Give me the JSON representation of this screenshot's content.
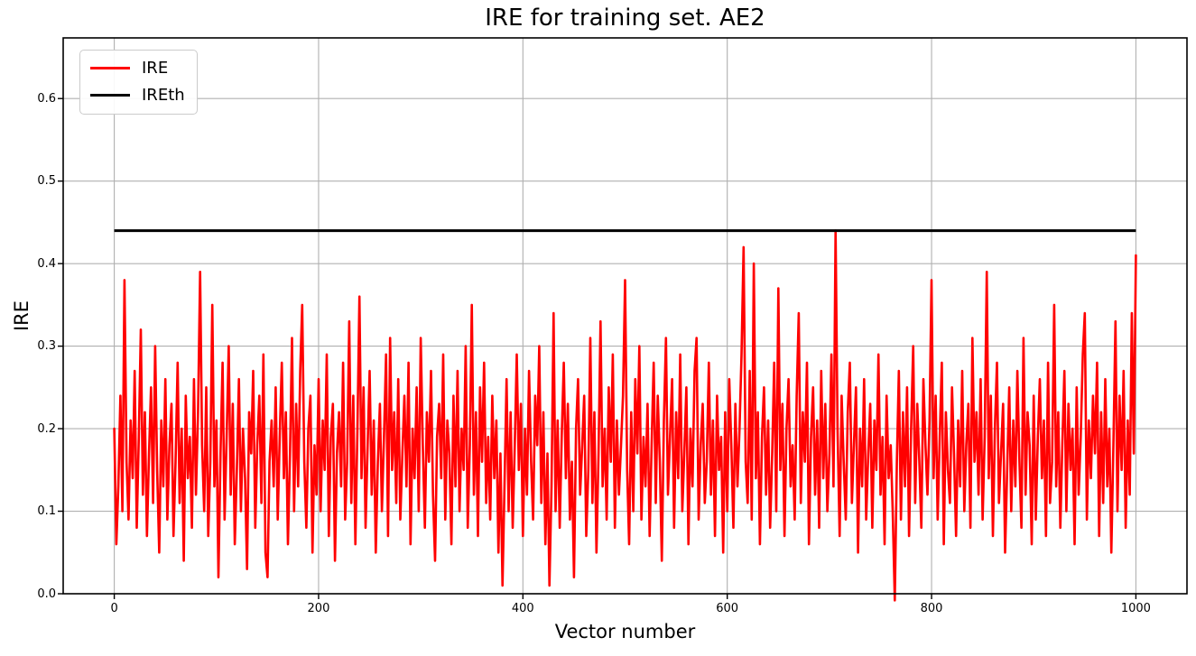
{
  "figure": {
    "background": "#ffffff"
  },
  "chart_data": {
    "type": "line",
    "title": "IRE for training set. AE2",
    "xlabel": "Vector number",
    "ylabel": "IRE",
    "xlim": [
      -50,
      1050
    ],
    "ylim": [
      0,
      0.6735
    ],
    "x_ticks": [
      0,
      200,
      400,
      600,
      800,
      1000
    ],
    "x_tick_labels": [
      "0",
      "200",
      "400",
      "600",
      "800",
      "1000"
    ],
    "y_ticks": [
      0,
      0.1,
      0.2,
      0.3,
      0.4,
      0.5,
      0.6
    ],
    "y_tick_labels": [
      "0.0",
      "0.1",
      "0.2",
      "0.3",
      "0.4",
      "0.5",
      "0.6"
    ],
    "grid": true,
    "grid_color": "#b0b0b0",
    "spine_color": "#000000",
    "legend": {
      "position": "upper-left",
      "entries": [
        {
          "label": "IRE",
          "color": "#ff0000"
        },
        {
          "label": "IREth",
          "color": "#000000"
        }
      ]
    },
    "series": [
      {
        "name": "IRE",
        "type": "line",
        "color": "#ff0000",
        "linewidth": 2.6,
        "x_start": 0,
        "x_step": 2,
        "values": [
          0.2,
          0.06,
          0.13,
          0.24,
          0.1,
          0.38,
          0.16,
          0.09,
          0.21,
          0.14,
          0.27,
          0.08,
          0.19,
          0.32,
          0.12,
          0.22,
          0.07,
          0.17,
          0.25,
          0.11,
          0.3,
          0.15,
          0.05,
          0.21,
          0.13,
          0.26,
          0.09,
          0.18,
          0.23,
          0.07,
          0.16,
          0.28,
          0.11,
          0.2,
          0.04,
          0.24,
          0.14,
          0.19,
          0.08,
          0.26,
          0.12,
          0.22,
          0.39,
          0.18,
          0.1,
          0.25,
          0.07,
          0.16,
          0.35,
          0.13,
          0.21,
          0.02,
          0.17,
          0.28,
          0.09,
          0.19,
          0.3,
          0.12,
          0.23,
          0.06,
          0.15,
          0.26,
          0.1,
          0.2,
          0.14,
          0.03,
          0.22,
          0.17,
          0.27,
          0.08,
          0.18,
          0.24,
          0.11,
          0.29,
          0.05,
          0.02,
          0.16,
          0.21,
          0.13,
          0.25,
          0.09,
          0.19,
          0.28,
          0.14,
          0.22,
          0.06,
          0.17,
          0.31,
          0.1,
          0.23,
          0.13,
          0.27,
          0.35,
          0.16,
          0.08,
          0.2,
          0.24,
          0.05,
          0.18,
          0.12,
          0.26,
          0.1,
          0.21,
          0.15,
          0.29,
          0.07,
          0.19,
          0.23,
          0.04,
          0.17,
          0.22,
          0.13,
          0.28,
          0.09,
          0.16,
          0.33,
          0.11,
          0.24,
          0.06,
          0.2,
          0.36,
          0.14,
          0.25,
          0.08,
          0.18,
          0.27,
          0.12,
          0.21,
          0.05,
          0.16,
          0.23,
          0.1,
          0.19,
          0.29,
          0.07,
          0.31,
          0.15,
          0.22,
          0.11,
          0.26,
          0.09,
          0.17,
          0.24,
          0.13,
          0.28,
          0.06,
          0.2,
          0.14,
          0.25,
          0.1,
          0.31,
          0.18,
          0.08,
          0.22,
          0.16,
          0.27,
          0.12,
          0.04,
          0.19,
          0.23,
          0.14,
          0.29,
          0.09,
          0.21,
          0.17,
          0.06,
          0.24,
          0.13,
          0.27,
          0.1,
          0.2,
          0.15,
          0.3,
          0.08,
          0.18,
          0.35,
          0.12,
          0.22,
          0.07,
          0.25,
          0.16,
          0.28,
          0.11,
          0.19,
          0.09,
          0.24,
          0.14,
          0.21,
          0.05,
          0.17,
          0.01,
          0.13,
          0.26,
          0.1,
          0.22,
          0.08,
          0.18,
          0.29,
          0.15,
          0.23,
          0.07,
          0.2,
          0.12,
          0.27,
          0.16,
          0.09,
          0.24,
          0.18,
          0.3,
          0.11,
          0.22,
          0.06,
          0.17,
          0.01,
          0.13,
          0.34,
          0.1,
          0.21,
          0.08,
          0.19,
          0.28,
          0.14,
          0.23,
          0.09,
          0.16,
          0.02,
          0.2,
          0.26,
          0.12,
          0.18,
          0.24,
          0.07,
          0.15,
          0.31,
          0.11,
          0.22,
          0.05,
          0.17,
          0.33,
          0.13,
          0.2,
          0.09,
          0.25,
          0.16,
          0.29,
          0.08,
          0.21,
          0.12,
          0.18,
          0.24,
          0.38,
          0.15,
          0.06,
          0.22,
          0.1,
          0.26,
          0.17,
          0.3,
          0.09,
          0.19,
          0.13,
          0.23,
          0.07,
          0.18,
          0.28,
          0.11,
          0.24,
          0.16,
          0.04,
          0.21,
          0.31,
          0.12,
          0.19,
          0.26,
          0.08,
          0.22,
          0.14,
          0.29,
          0.1,
          0.17,
          0.25,
          0.06,
          0.2,
          0.13,
          0.27,
          0.31,
          0.09,
          0.18,
          0.23,
          0.11,
          0.16,
          0.28,
          0.12,
          0.21,
          0.07,
          0.24,
          0.15,
          0.19,
          0.05,
          0.22,
          0.1,
          0.26,
          0.18,
          0.08,
          0.23,
          0.13,
          0.2,
          0.29,
          0.42,
          0.16,
          0.11,
          0.27,
          0.09,
          0.4,
          0.14,
          0.22,
          0.06,
          0.19,
          0.25,
          0.12,
          0.21,
          0.08,
          0.17,
          0.28,
          0.1,
          0.37,
          0.15,
          0.23,
          0.07,
          0.2,
          0.26,
          0.13,
          0.18,
          0.09,
          0.24,
          0.34,
          0.11,
          0.22,
          0.16,
          0.28,
          0.06,
          0.19,
          0.25,
          0.12,
          0.21,
          0.08,
          0.27,
          0.14,
          0.23,
          0.1,
          0.17,
          0.29,
          0.13,
          0.44,
          0.2,
          0.07,
          0.24,
          0.16,
          0.09,
          0.22,
          0.28,
          0.11,
          0.18,
          0.25,
          0.05,
          0.2,
          0.13,
          0.26,
          0.09,
          0.17,
          0.23,
          0.08,
          0.21,
          0.15,
          0.29,
          0.12,
          0.19,
          0.06,
          0.24,
          0.14,
          0.18,
          0.1,
          -0.008,
          0.16,
          0.27,
          0.09,
          0.22,
          0.13,
          0.25,
          0.07,
          0.2,
          0.3,
          0.11,
          0.23,
          0.16,
          0.08,
          0.26,
          0.18,
          0.12,
          0.21,
          0.38,
          0.14,
          0.24,
          0.09,
          0.19,
          0.28,
          0.06,
          0.22,
          0.15,
          0.11,
          0.25,
          0.17,
          0.07,
          0.21,
          0.13,
          0.27,
          0.1,
          0.18,
          0.23,
          0.08,
          0.31,
          0.16,
          0.22,
          0.12,
          0.26,
          0.09,
          0.19,
          0.39,
          0.14,
          0.24,
          0.07,
          0.2,
          0.28,
          0.11,
          0.17,
          0.23,
          0.05,
          0.15,
          0.25,
          0.1,
          0.21,
          0.13,
          0.27,
          0.16,
          0.08,
          0.31,
          0.12,
          0.22,
          0.18,
          0.06,
          0.24,
          0.09,
          0.19,
          0.26,
          0.14,
          0.21,
          0.07,
          0.28,
          0.11,
          0.16,
          0.35,
          0.13,
          0.22,
          0.08,
          0.18,
          0.27,
          0.1,
          0.23,
          0.15,
          0.2,
          0.06,
          0.25,
          0.12,
          0.19,
          0.29,
          0.34,
          0.09,
          0.21,
          0.14,
          0.24,
          0.17,
          0.28,
          0.07,
          0.22,
          0.11,
          0.26,
          0.13,
          0.2,
          0.05,
          0.18,
          0.33,
          0.1,
          0.24,
          0.15,
          0.27,
          0.08,
          0.21,
          0.12,
          0.34,
          0.17,
          0.41
        ]
      },
      {
        "name": "IREth",
        "type": "hline",
        "color": "#000000",
        "linewidth": 3,
        "y": 0.44,
        "x_start": 0,
        "x_end": 1000
      }
    ]
  }
}
